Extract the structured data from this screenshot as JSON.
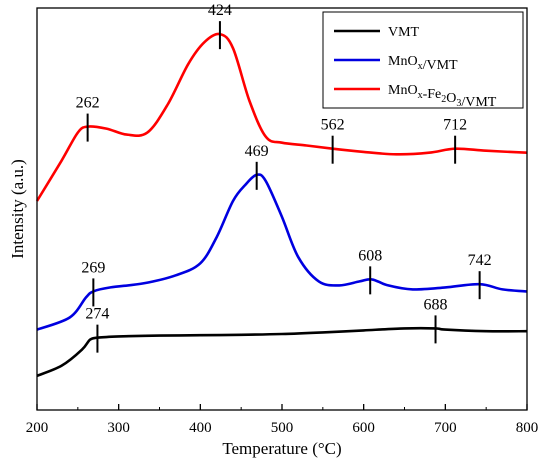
{
  "chart_data": {
    "type": "line",
    "xlabel": "Temperature (°C)",
    "ylabel": "Intensity (a.u.)",
    "xlim": [
      200,
      800
    ],
    "ylim": [
      0,
      100
    ],
    "x_ticks": [
      200,
      300,
      400,
      500,
      600,
      700,
      800
    ],
    "grid": false,
    "legend_position": "top-right",
    "series": [
      {
        "name": "VMT",
        "legend_main": "VMT",
        "legend_parts": [
          {
            "t": "VMT",
            "sub": false
          }
        ],
        "color": "#000000",
        "x": [
          200,
          230,
          255,
          265,
          275,
          300,
          350,
          400,
          450,
          500,
          550,
          600,
          650,
          688,
          700,
          750,
          800
        ],
        "y": [
          8.5,
          11,
          15,
          17.5,
          18,
          18.3,
          18.5,
          18.6,
          18.7,
          18.9,
          19.3,
          19.8,
          20.3,
          20.3,
          20,
          19.6,
          19.6
        ],
        "peaks": [
          {
            "label": "274",
            "x": 274,
            "y": 18
          },
          {
            "label": "688",
            "x": 688,
            "y": 20.3
          }
        ]
      },
      {
        "name": "MnOx/VMT",
        "legend_parts": [
          {
            "t": "MnO",
            "sub": false
          },
          {
            "t": "x",
            "sub": true
          },
          {
            "t": "/VMT",
            "sub": false
          }
        ],
        "color": "#0000e0",
        "x": [
          200,
          240,
          260,
          269,
          290,
          330,
          370,
          400,
          420,
          440,
          455,
          469,
          480,
          500,
          520,
          545,
          570,
          595,
          610,
          630,
          660,
          700,
          742,
          770,
          800
        ],
        "y": [
          20,
          23,
          28,
          29.5,
          30.5,
          31.5,
          33.5,
          36.5,
          43,
          52,
          56,
          58.5,
          57,
          48,
          38,
          32,
          31,
          32,
          32.5,
          31,
          30,
          30.5,
          31.3,
          30,
          29.5
        ],
        "peaks": [
          {
            "label": "269",
            "x": 269,
            "y": 29.5
          },
          {
            "label": "469",
            "x": 469,
            "y": 58.5
          },
          {
            "label": "608",
            "x": 608,
            "y": 32.5
          },
          {
            "label": "742",
            "x": 742,
            "y": 31.3
          }
        ]
      },
      {
        "name": "MnOx-Fe2O3/VMT",
        "legend_parts": [
          {
            "t": "MnO",
            "sub": false
          },
          {
            "t": "x",
            "sub": true
          },
          {
            "t": "-Fe",
            "sub": false
          },
          {
            "t": "2",
            "sub": true
          },
          {
            "t": "O",
            "sub": false
          },
          {
            "t": "3",
            "sub": true
          },
          {
            "t": "/VMT",
            "sub": false
          }
        ],
        "color": "#ff0000",
        "x": [
          200,
          230,
          250,
          262,
          285,
          310,
          335,
          360,
          385,
          405,
          424,
          440,
          460,
          480,
          500,
          530,
          562,
          600,
          640,
          680,
          712,
          750,
          800
        ],
        "y": [
          52,
          62,
          69,
          70.5,
          70,
          68.5,
          69,
          76,
          86,
          91.5,
          93.5,
          90,
          77,
          68,
          66.5,
          65.8,
          65,
          64.2,
          63.6,
          64,
          65,
          64.5,
          64
        ],
        "peaks": [
          {
            "label": "262",
            "x": 262,
            "y": 70.5
          },
          {
            "label": "424",
            "x": 424,
            "y": 93.5
          },
          {
            "label": "562",
            "x": 562,
            "y": 65
          },
          {
            "label": "712",
            "x": 712,
            "y": 65
          }
        ]
      }
    ]
  }
}
